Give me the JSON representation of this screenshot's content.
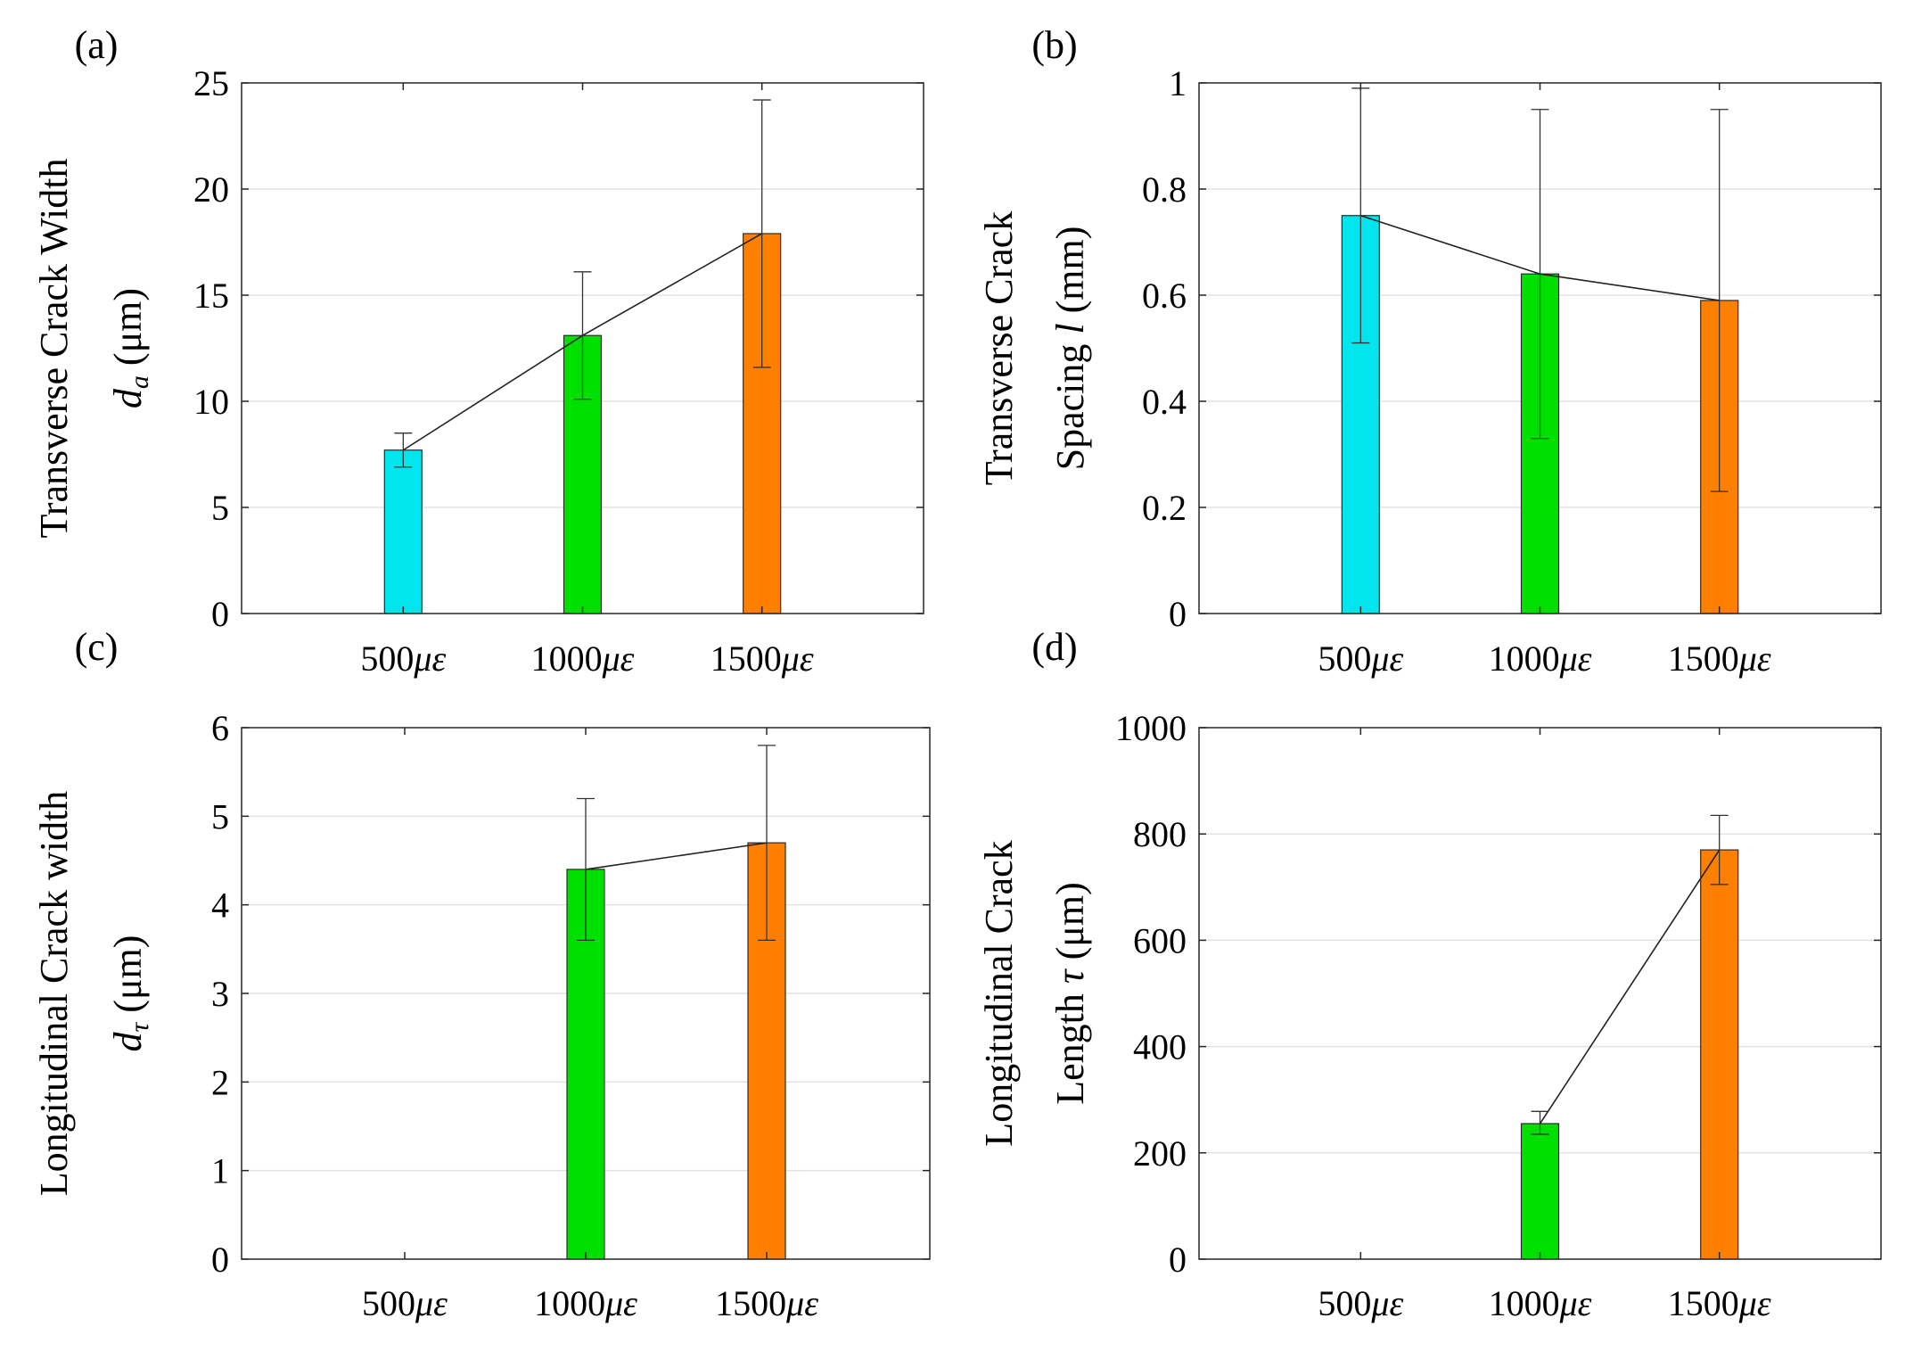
{
  "chart_data": [
    {
      "type": "bar",
      "panel_label": "(a)",
      "categories": [
        "500",
        "1000",
        "1500"
      ],
      "category_unit": "με",
      "values": [
        7.7,
        13.1,
        17.9
      ],
      "error_low": [
        6.9,
        10.1,
        11.6
      ],
      "error_high": [
        8.5,
        16.1,
        24.2
      ],
      "colors": [
        "#00e5ee",
        "#00e000",
        "#ff7f00"
      ],
      "ylabel_line1": "Transverse Crack Width",
      "ylabel_symbol": "d",
      "ylabel_sub": "a",
      "ylabel_unit": " (μm)",
      "ylim": [
        0,
        25
      ],
      "yticks": [
        0,
        5,
        10,
        15,
        20,
        25
      ],
      "connect_line": true,
      "grid": "horizontal"
    },
    {
      "type": "bar",
      "panel_label": "(b)",
      "categories": [
        "500",
        "1000",
        "1500"
      ],
      "category_unit": "με",
      "values": [
        0.75,
        0.64,
        0.59
      ],
      "error_low": [
        0.51,
        0.33,
        0.23
      ],
      "error_high": [
        0.99,
        0.95,
        0.95
      ],
      "colors": [
        "#00e5ee",
        "#00e000",
        "#ff7f00"
      ],
      "ylabel_line1": "Transverse Crack",
      "ylabel_prefix": "Spacing ",
      "ylabel_symbol": "l",
      "ylabel_unit": " (mm)",
      "ylim": [
        0,
        1
      ],
      "yticks": [
        0,
        0.2,
        0.4,
        0.6,
        0.8,
        1
      ],
      "ytick_labels": [
        "0",
        "0.2",
        "0.4",
        "0.6",
        "0.8",
        "1"
      ],
      "connect_line": true,
      "grid": "horizontal"
    },
    {
      "type": "bar",
      "panel_label": "(c)",
      "categories": [
        "500",
        "1000",
        "1500"
      ],
      "category_unit": "με",
      "values": [
        null,
        4.4,
        4.7
      ],
      "error_low": [
        null,
        3.6,
        3.6
      ],
      "error_high": [
        null,
        5.2,
        5.8
      ],
      "colors": [
        "#00e5ee",
        "#00e000",
        "#ff7f00"
      ],
      "ylabel_line1": "Longitudinal Crack width",
      "ylabel_symbol": "d",
      "ylabel_sub": "τ",
      "ylabel_unit": " (μm)",
      "ylim": [
        0,
        6
      ],
      "yticks": [
        0,
        1,
        2,
        3,
        4,
        5,
        6
      ],
      "connect_line": true,
      "grid": "horizontal"
    },
    {
      "type": "bar",
      "panel_label": "(d)",
      "categories": [
        "500",
        "1000",
        "1500"
      ],
      "category_unit": "με",
      "values": [
        null,
        255,
        770
      ],
      "error_low": [
        null,
        235,
        705
      ],
      "error_high": [
        null,
        278,
        835
      ],
      "colors": [
        "#00e5ee",
        "#00e000",
        "#ff7f00"
      ],
      "ylabel_line1": "Longitudinal Crack",
      "ylabel_prefix": "Length ",
      "ylabel_symbol": "τ",
      "ylabel_unit": " (μm)",
      "ylim": [
        0,
        1000
      ],
      "yticks": [
        0,
        200,
        400,
        600,
        800,
        1000
      ],
      "connect_line": true,
      "grid": "horizontal"
    }
  ]
}
